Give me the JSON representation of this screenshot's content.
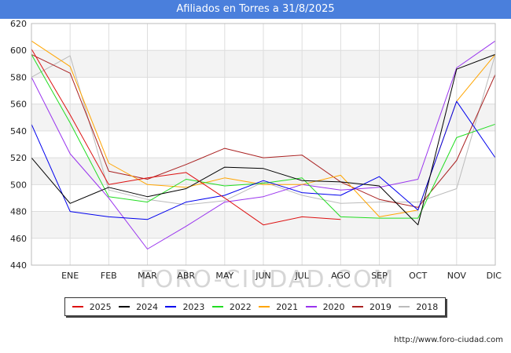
{
  "title": "Afiliados en Torres a 31/8/2025",
  "source": "http://www.foro-ciudad.com",
  "watermark": "FORO-CIUDAD.COM",
  "chart_data": {
    "type": "line",
    "title": "Afiliados en Torres a 31/8/2025",
    "xlabel": "",
    "ylabel": "",
    "categories": [
      "",
      "ENE",
      "FEB",
      "MAR",
      "ABR",
      "MAY",
      "JUN",
      "JUL",
      "AGO",
      "SEP",
      "OCT",
      "NOV",
      "DIC"
    ],
    "ylim": [
      440,
      620
    ],
    "yticks": [
      440,
      460,
      480,
      500,
      520,
      540,
      560,
      580,
      600,
      620
    ],
    "grid": true,
    "legend_position": "bottom",
    "series": [
      {
        "name": "2025",
        "color": "#dd1111",
        "values": [
          601,
          552,
          500,
          505,
          509,
          490,
          470,
          476,
          474,
          null,
          null,
          null,
          null
        ]
      },
      {
        "name": "2024",
        "color": "#000000",
        "values": [
          520,
          486,
          498,
          491,
          497,
          513,
          512,
          503,
          502,
          499,
          470,
          586,
          597
        ]
      },
      {
        "name": "2023",
        "color": "#0000ee",
        "values": [
          545,
          480,
          476,
          474,
          487,
          492,
          503,
          494,
          492,
          506,
          481,
          562,
          520
        ]
      },
      {
        "name": "2022",
        "color": "#22dd22",
        "values": [
          597,
          546,
          491,
          487,
          504,
          499,
          501,
          505,
          476,
          475,
          475,
          535,
          545
        ]
      },
      {
        "name": "2021",
        "color": "#ffa500",
        "values": [
          607,
          588,
          516,
          500,
          498,
          505,
          500,
          500,
          507,
          476,
          481,
          562,
          597
        ]
      },
      {
        "name": "2020",
        "color": "#9933ee",
        "values": [
          580,
          523,
          490,
          452,
          469,
          487,
          491,
          500,
          496,
          498,
          504,
          587,
          607
        ]
      },
      {
        "name": "2019",
        "color": "#aa2222",
        "values": [
          597,
          583,
          510,
          504,
          515,
          527,
          520,
          522,
          502,
          489,
          483,
          518,
          582
        ]
      },
      {
        "name": "2018",
        "color": "#bbbbbb",
        "values": [
          580,
          596,
          496,
          489,
          485,
          488,
          502,
          492,
          486,
          487,
          487,
          497,
          597
        ]
      }
    ]
  }
}
